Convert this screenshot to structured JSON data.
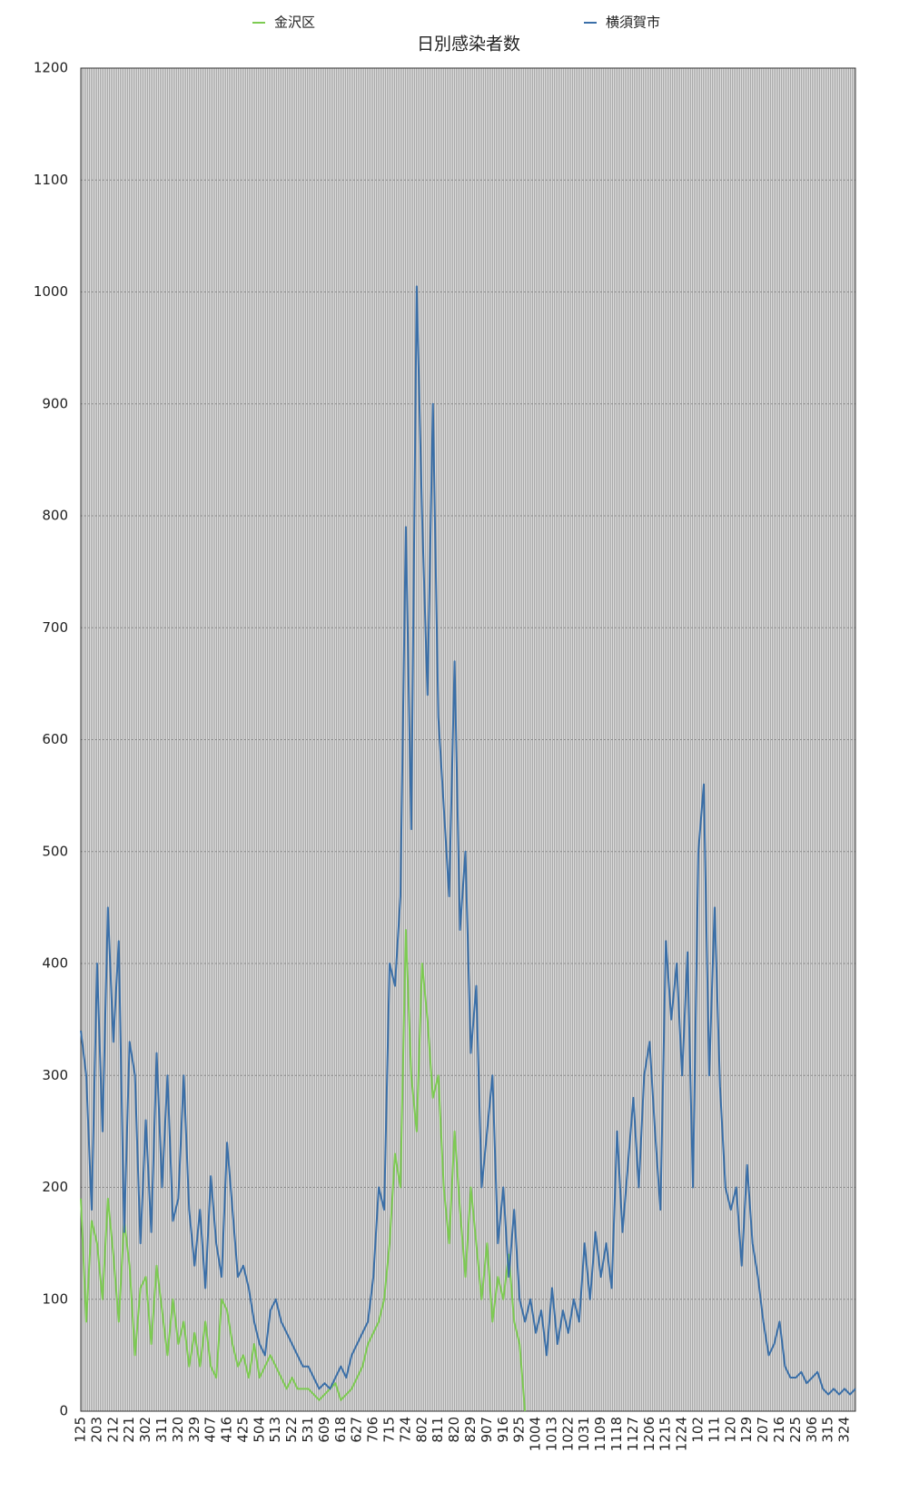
{
  "chart_data": {
    "type": "line",
    "title": "日別感染者数",
    "categories": [
      "125",
      null,
      null,
      "203",
      null,
      null,
      "212",
      null,
      null,
      "221",
      null,
      null,
      "302",
      null,
      null,
      "311",
      null,
      null,
      "320",
      null,
      null,
      "329",
      null,
      null,
      "407",
      null,
      null,
      "416",
      null,
      null,
      "425",
      null,
      null,
      "504",
      null,
      null,
      "513",
      null,
      null,
      "522",
      null,
      null,
      "531",
      null,
      null,
      "609",
      null,
      null,
      "618",
      null,
      null,
      "627",
      null,
      null,
      "706",
      null,
      null,
      "715",
      null,
      null,
      "724",
      null,
      null,
      "802",
      null,
      null,
      "811",
      null,
      null,
      "820",
      null,
      null,
      "829",
      null,
      null,
      "907",
      null,
      null,
      "916",
      null,
      null,
      "925",
      null,
      null,
      "1004",
      null,
      null,
      "1013",
      null,
      null,
      "1022",
      null,
      null,
      "1031",
      null,
      null,
      "1109",
      null,
      null,
      "1118",
      null,
      null,
      "1127",
      null,
      null,
      "1206",
      null,
      null,
      "1215",
      null,
      null,
      "1224",
      null,
      null,
      "102",
      null,
      null,
      "111",
      null,
      null,
      "120",
      null,
      null,
      "129",
      null,
      null,
      "207",
      null,
      null,
      "216",
      null,
      null,
      "225",
      null,
      null,
      "306",
      null,
      null,
      "315",
      null,
      null,
      "324",
      null,
      null
    ],
    "series": [
      {
        "name": "金沢区",
        "color": "#7dcb52",
        "values": [
          190,
          80,
          170,
          150,
          100,
          190,
          140,
          80,
          170,
          130,
          50,
          110,
          120,
          60,
          130,
          90,
          50,
          100,
          60,
          80,
          40,
          70,
          40,
          80,
          40,
          30,
          100,
          90,
          60,
          40,
          50,
          30,
          60,
          30,
          40,
          50,
          40,
          30,
          20,
          30,
          20,
          20,
          20,
          15,
          10,
          15,
          20,
          25,
          10,
          15,
          20,
          30,
          40,
          60,
          70,
          80,
          100,
          150,
          230,
          200,
          430,
          300,
          250,
          400,
          350,
          280,
          300,
          200,
          150,
          250,
          180,
          120,
          200,
          150,
          100,
          150,
          80,
          120,
          100,
          140,
          80,
          60,
          0,
          null,
          null,
          null,
          null,
          null,
          null,
          null,
          null,
          null,
          null,
          null,
          null,
          null,
          null,
          null,
          null,
          null,
          null,
          null,
          null,
          null,
          null,
          null,
          null,
          null,
          null,
          null,
          null,
          null,
          null,
          null,
          null,
          null,
          null,
          null,
          null,
          null,
          null,
          null,
          null,
          null,
          null,
          null,
          null,
          null,
          null,
          null,
          null,
          null,
          null,
          null,
          null,
          null,
          null,
          null,
          null,
          null,
          null,
          null,
          null,
          null
        ]
      },
      {
        "name": "横須賀市",
        "color": "#3a6fa8",
        "values": [
          340,
          300,
          180,
          400,
          250,
          450,
          330,
          420,
          160,
          330,
          300,
          150,
          260,
          160,
          320,
          200,
          300,
          170,
          190,
          300,
          180,
          130,
          180,
          110,
          210,
          150,
          120,
          240,
          180,
          120,
          130,
          110,
          80,
          60,
          50,
          90,
          100,
          80,
          70,
          60,
          50,
          40,
          40,
          30,
          20,
          25,
          20,
          30,
          40,
          30,
          50,
          60,
          70,
          80,
          120,
          200,
          180,
          400,
          380,
          460,
          790,
          520,
          1005,
          800,
          640,
          900,
          620,
          540,
          460,
          670,
          430,
          500,
          320,
          380,
          200,
          250,
          300,
          150,
          200,
          120,
          180,
          100,
          80,
          100,
          70,
          90,
          50,
          110,
          60,
          90,
          70,
          100,
          80,
          150,
          100,
          160,
          120,
          150,
          110,
          250,
          160,
          220,
          280,
          200,
          300,
          330,
          250,
          180,
          420,
          350,
          400,
          300,
          410,
          200,
          500,
          560,
          300,
          450,
          290,
          200,
          180,
          200,
          130,
          220,
          150,
          120,
          80,
          50,
          60,
          80,
          40,
          30,
          30,
          35,
          25,
          30,
          35,
          20,
          15,
          20,
          15,
          20,
          15,
          20
        ]
      }
    ],
    "ylim": [
      0,
      1200
    ],
    "yticks": [
      0,
      100,
      200,
      300,
      400,
      500,
      600,
      700,
      800,
      900,
      1000,
      1100,
      1200
    ],
    "grid": true
  }
}
